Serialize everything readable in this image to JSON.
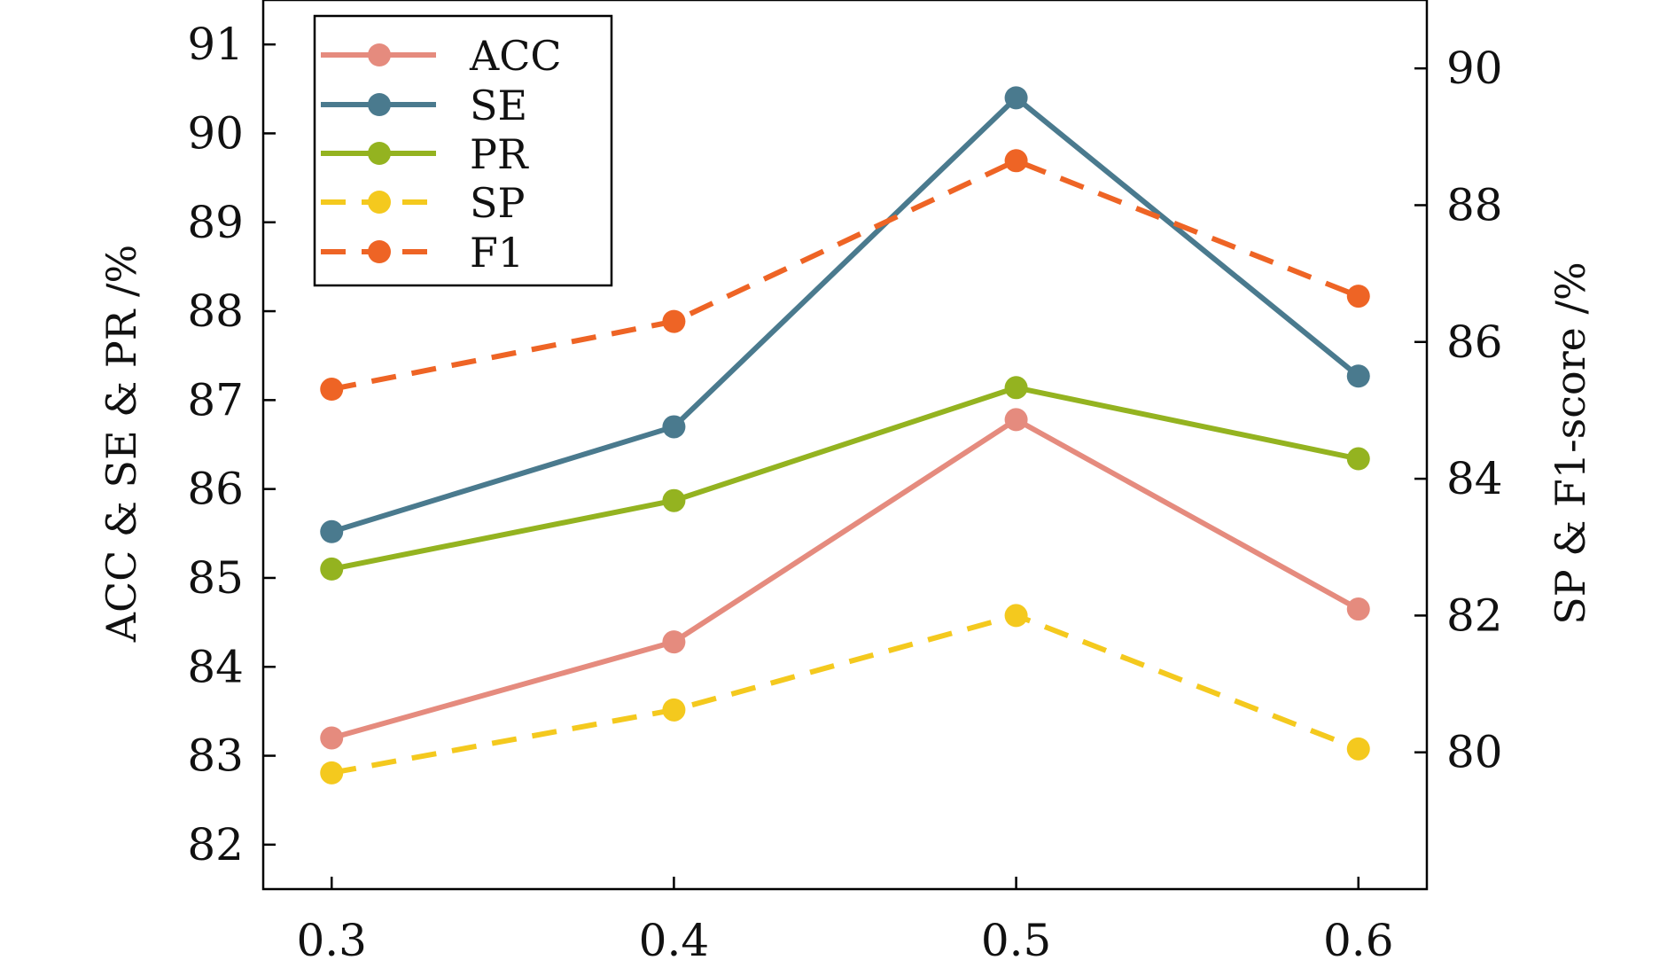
{
  "chart_data": {
    "type": "line",
    "x": [
      0.3,
      0.4,
      0.5,
      0.6
    ],
    "x_ticks": [
      "0.3",
      "0.4",
      "0.5",
      "0.6"
    ],
    "xlim": [
      0.28,
      0.62
    ],
    "ylabel_left": "ACC & SE & PR /%",
    "ylabel_right": "SP & F1-score /%",
    "ylim_left": [
      81.5,
      91.5
    ],
    "ylim_right": [
      78,
      91
    ],
    "y_ticks_left": [
      82,
      83,
      84,
      85,
      86,
      87,
      88,
      89,
      90,
      91
    ],
    "y_ticks_right": [
      80,
      82,
      84,
      86,
      88,
      90
    ],
    "legend_position": "top-left",
    "grid": false,
    "series": [
      {
        "name": "ACC",
        "axis": "left",
        "style": "solid",
        "color": "#E58B7E",
        "values": [
          83.2,
          84.28,
          86.78,
          84.65
        ]
      },
      {
        "name": "SE",
        "axis": "left",
        "style": "solid",
        "color": "#4A7A8E",
        "values": [
          85.52,
          86.7,
          90.4,
          87.27
        ]
      },
      {
        "name": "PR",
        "axis": "left",
        "style": "solid",
        "color": "#94B320",
        "values": [
          85.1,
          85.87,
          87.14,
          86.34
        ]
      },
      {
        "name": "SP",
        "axis": "right",
        "style": "dashed",
        "color": "#F4C91E",
        "values": [
          79.7,
          80.62,
          82.0,
          80.05
        ]
      },
      {
        "name": "F1",
        "axis": "right",
        "style": "dashed",
        "color": "#EE6425",
        "values": [
          85.31,
          86.3,
          88.65,
          86.67
        ]
      }
    ]
  }
}
